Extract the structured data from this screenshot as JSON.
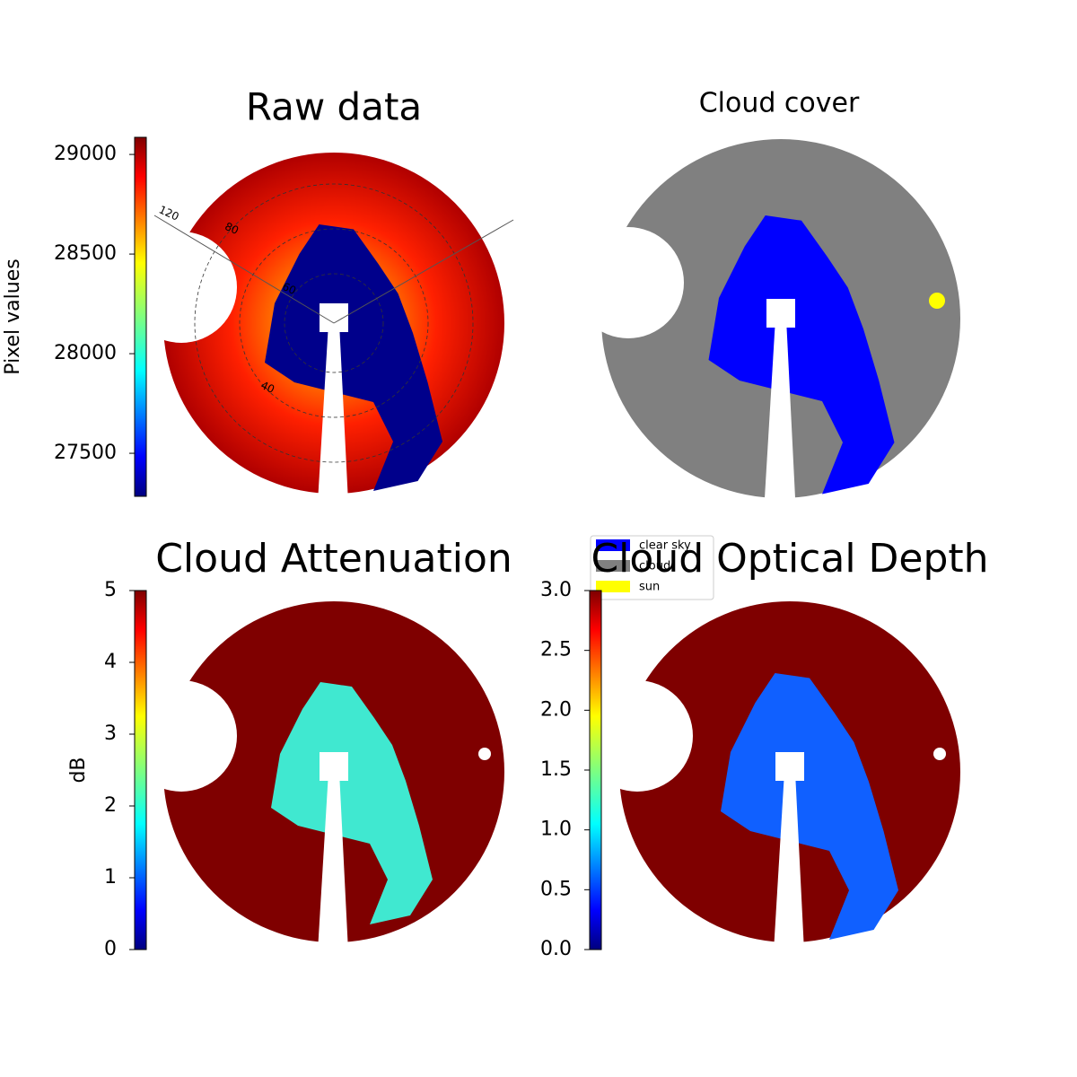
{
  "chart_data": [
    {
      "type": "image",
      "title": "Raw data",
      "colorbar_label": "Pixel values",
      "colormap": "jet",
      "ylim": [
        27284,
        29086
      ],
      "yticks": [
        27500,
        28000,
        28500,
        29000
      ],
      "polar_labels": [
        "120",
        "80",
        "60",
        "40"
      ]
    },
    {
      "type": "image",
      "title": "Cloud cover",
      "legend": [
        {
          "name": "clear sky",
          "color": "#0000ff"
        },
        {
          "name": "cloud",
          "color": "#808080"
        },
        {
          "name": "sun",
          "color": "#ffff00"
        }
      ]
    },
    {
      "type": "image",
      "title": "Cloud Attenuation",
      "colorbar_label": "dB",
      "colormap": "jet",
      "ylim": [
        0,
        5
      ],
      "yticks": [
        0,
        1,
        2,
        3,
        4,
        5
      ]
    },
    {
      "type": "image",
      "title": "Cloud Optical Depth",
      "colormap": "jet",
      "ylim": [
        0,
        3
      ],
      "yticks": [
        {
          "value": 0,
          "label": "0.0"
        },
        {
          "value": 0.5,
          "label": "0.5"
        },
        {
          "value": 1,
          "label": "1.0"
        },
        {
          "value": 1.5,
          "label": "1.5"
        },
        {
          "value": 2,
          "label": "2.0"
        },
        {
          "value": 2.5,
          "label": "2.5"
        },
        {
          "value": 3,
          "label": "3.0"
        }
      ]
    }
  ]
}
